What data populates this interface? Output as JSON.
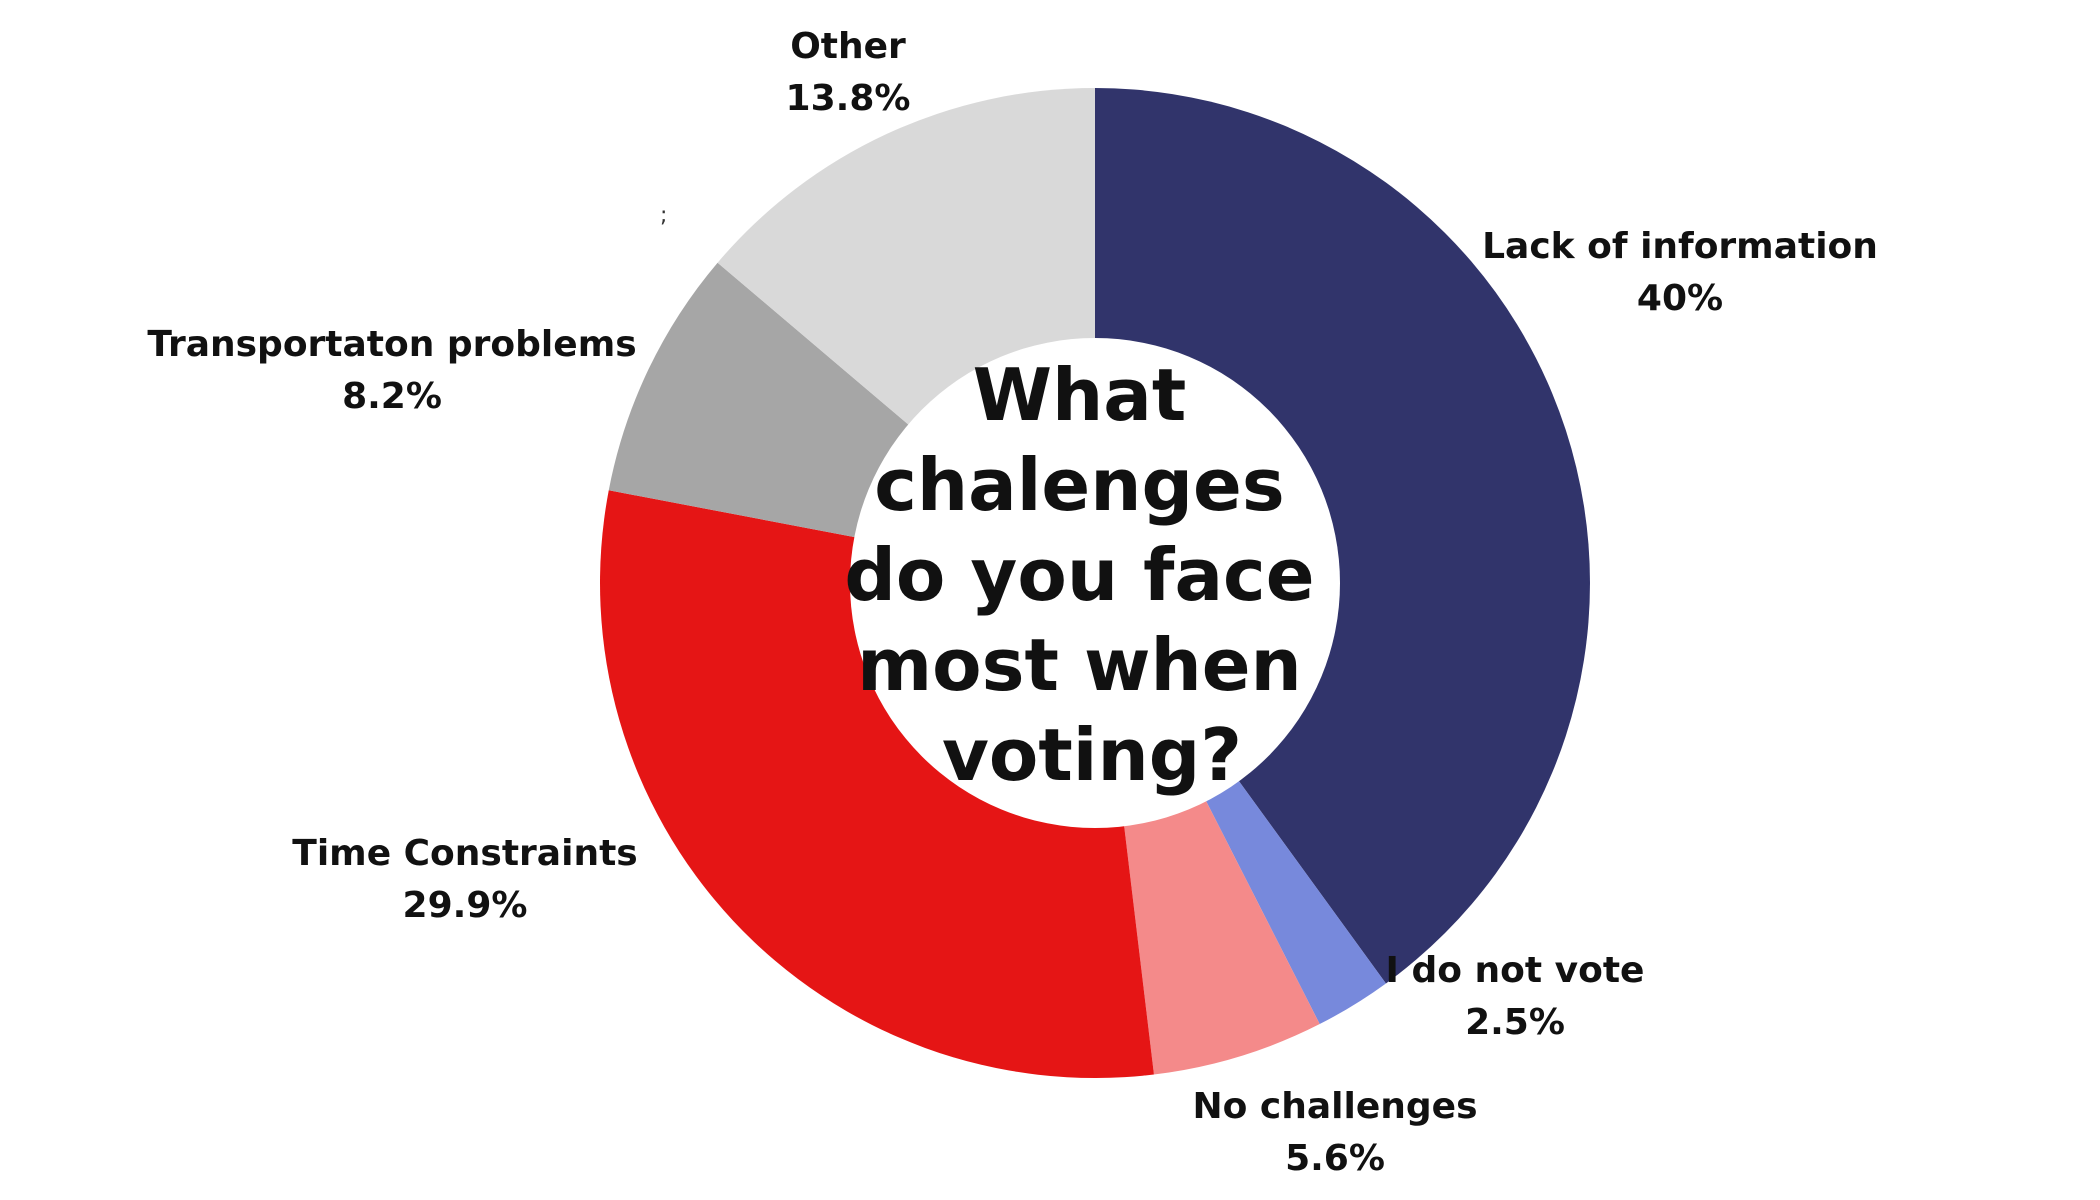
{
  "chart_data": {
    "type": "pie",
    "style": "donut",
    "title_lines": [
      "What",
      "chalenges",
      "do you face",
      "most when",
      "voting?"
    ],
    "stray_mark": ";",
    "legend": "none",
    "grid": false,
    "slices": [
      {
        "label": "Lack of information",
        "value": 40,
        "value_text": "40%",
        "color": "#31346b"
      },
      {
        "label": "I do not vote",
        "value": 2.5,
        "value_text": "2.5%",
        "color": "#7789dc"
      },
      {
        "label": "No challenges",
        "value": 5.6,
        "value_text": "5.6%",
        "color": "#f48a8a"
      },
      {
        "label": "Time Constraints",
        "value": 29.9,
        "value_text": "29.9%",
        "color": "#e51515"
      },
      {
        "label": "Transportaton problems",
        "value": 8.2,
        "value_text": "8.2%",
        "color": "#a6a6a6"
      },
      {
        "label": "Other",
        "value": 13.8,
        "value_text": "13.8%",
        "color": "#d9d9d9"
      }
    ]
  }
}
